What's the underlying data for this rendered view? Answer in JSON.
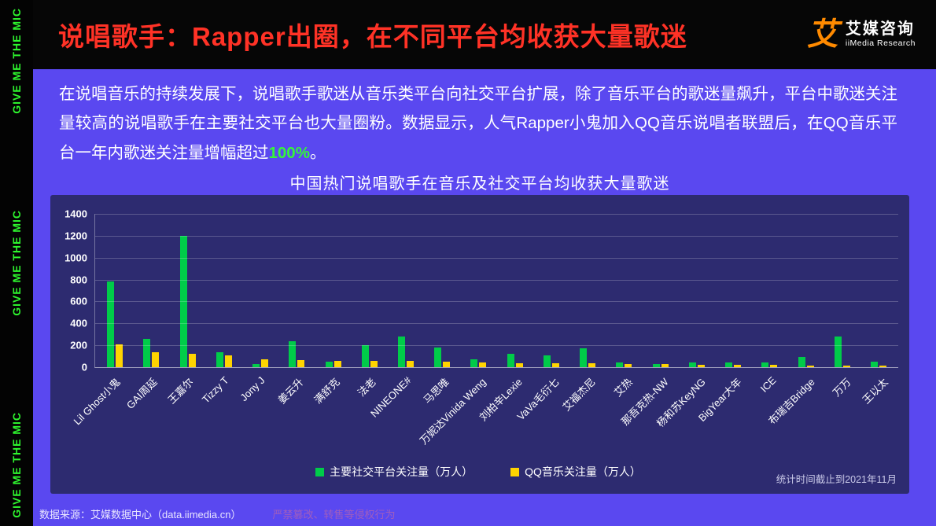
{
  "banner": {
    "text": "GIVE ME THE MIC"
  },
  "header": {
    "title": "说唱歌手：Rapper出圈，在不同平台均收获大量歌迷",
    "logo": {
      "mark": "艾",
      "name": "艾媒咨询",
      "subtitle": "iiMedia Research"
    }
  },
  "intro": {
    "text_before": "在说唱音乐的持续发展下，说唱歌手歌迷从音乐类平台向社交平台扩展，除了音乐平台的歌迷量飙升，平台中歌迷关注量较高的说唱歌手在主要社交平台也大量圈粉。数据显示，人气Rapper小鬼加入QQ音乐说唱者联盟后，在QQ音乐平台一年内歌迷关注量增幅超过",
    "highlight": "100%",
    "text_after": "。"
  },
  "chart_data": {
    "type": "bar",
    "title": "中国热门说唱歌手在音乐及社交平台均收获大量歌迷",
    "categories": [
      "Lil Ghost小鬼",
      "GAI周延",
      "王嘉尔",
      "Tizzy T",
      "Jony J",
      "姜云升",
      "满舒克",
      "法老",
      "NINEONE#",
      "马思唯",
      "万妮达Vinida Weng",
      "刘柏辛Lexie",
      "VaVa毛衍七",
      "艾福杰尼",
      "艾热",
      "那吾克热-NW",
      "杨和苏KeyNG",
      "BigYear大年",
      "ICE",
      "布瑞吉Bridge",
      "万万",
      "王以太"
    ],
    "series": [
      {
        "name": "主要社交平台关注量（万人）",
        "color": "#00CC49",
        "values": [
          780,
          260,
          1200,
          140,
          30,
          240,
          50,
          200,
          280,
          180,
          70,
          120,
          110,
          170,
          40,
          30,
          40,
          40,
          40,
          90,
          280,
          50
        ]
      },
      {
        "name": "QQ音乐关注量（万人）",
        "color": "#FFD400",
        "values": [
          210,
          140,
          120,
          110,
          70,
          65,
          60,
          55,
          55,
          50,
          40,
          38,
          35,
          33,
          32,
          28,
          25,
          22,
          20,
          18,
          16,
          15
        ]
      }
    ],
    "xlabel": "",
    "ylabel": "",
    "ylim": [
      0,
      1400
    ],
    "ytick_step": 200,
    "grid": true,
    "legend_position": "bottom",
    "note": "统计时间截止到2021年11月"
  },
  "footer": {
    "source": "数据来源：艾媒数据中心（data.iimedia.cn）",
    "watermark": "严禁篡改、转售等侵权行为"
  }
}
